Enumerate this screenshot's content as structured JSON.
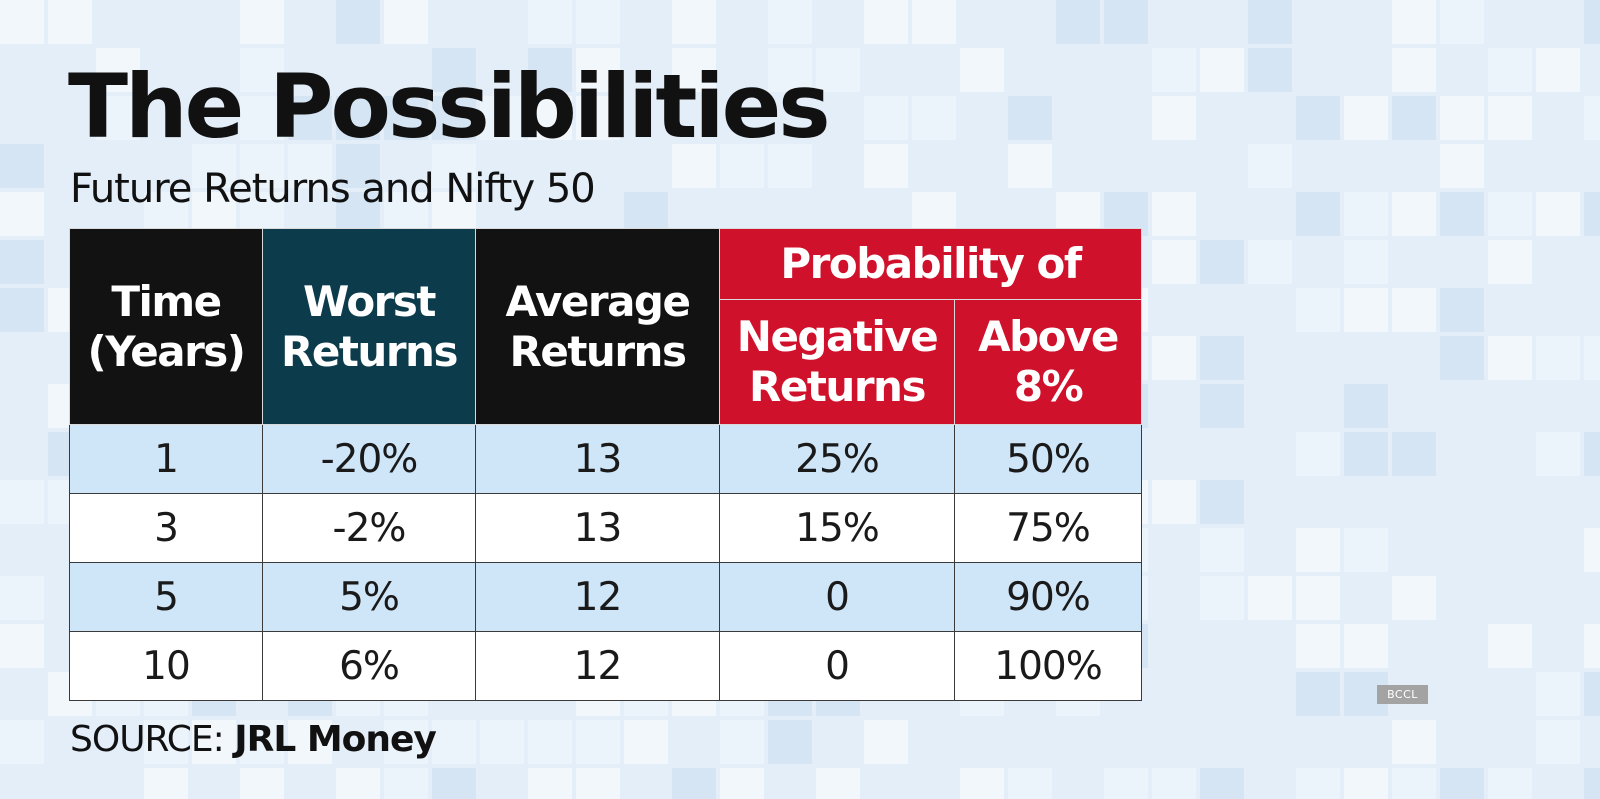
{
  "title": "The Possibilities",
  "subtitle": "Future Returns and Nifty 50",
  "colors": {
    "header_black": "#121212",
    "header_teal": "#0c3c4c",
    "header_red": "#d0112b",
    "row_blue": "#cfe5f8",
    "row_white": "#ffffff",
    "background": "#e3eef9"
  },
  "chart_data": {
    "type": "table",
    "title": "The Possibilities",
    "subtitle": "Future Returns and Nifty 50",
    "header_group": "Probability of",
    "columns": [
      "Time (Years)",
      "Worst Returns",
      "Average Returns",
      "Negative Returns",
      "Above 8%"
    ],
    "rows": [
      [
        "1",
        "-20%",
        "13",
        "25%",
        "50%"
      ],
      [
        "3",
        "-2%",
        "13",
        "15%",
        "75%"
      ],
      [
        "5",
        "5%",
        "12",
        "0",
        "90%"
      ],
      [
        "10",
        "6%",
        "12",
        "0",
        "100%"
      ]
    ]
  },
  "source": {
    "label": "SOURCE:",
    "name": "JRL Money"
  },
  "credit": "BCCL"
}
